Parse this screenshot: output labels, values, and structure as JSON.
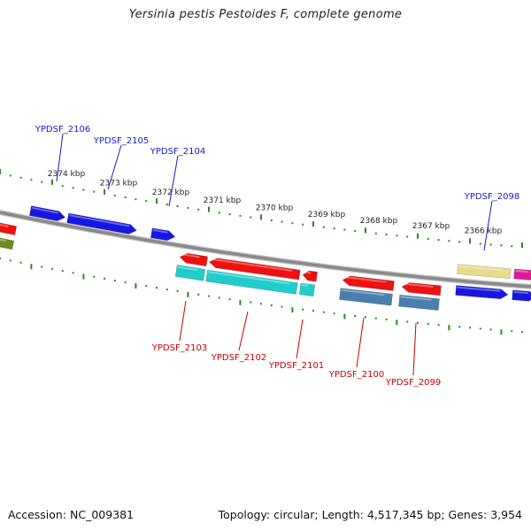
{
  "title": "Yersinia pestis Pestoides F, complete genome",
  "footer": {
    "accession": "Accession: NC_009381",
    "summary": "Topology: circular; Length: 4,517,345 bp; Genes: 3,954"
  },
  "colors": {
    "backbone": "#8a8a8a",
    "tick": "#2a8a1e",
    "forward_label": "#1a1acc",
    "reverse_label": "#cc0000",
    "red": "#ee1111",
    "blue": "#1717e0",
    "cyan": "#22cccc",
    "steelblue": "#4a7eae",
    "khaki": "#e8dc8a",
    "magenta": "#e0189a",
    "olive": "#6e8a1e"
  },
  "scale_labels": [
    "2374 kbp",
    "2373 kbp",
    "2372 kbp",
    "2371 kbp",
    "2370 kbp",
    "2369 kbp",
    "2368 kbp",
    "2367 kbp",
    "2366 kbp"
  ],
  "forward_genes": [
    "YPDSF_2106",
    "YPDSF_2105",
    "YPDSF_2104",
    "YPDSF_2098"
  ],
  "reverse_genes": [
    "YPDSF_2103",
    "YPDSF_2102",
    "YPDSF_2101",
    "YPDSF_2100",
    "YPDSF_2099"
  ]
}
